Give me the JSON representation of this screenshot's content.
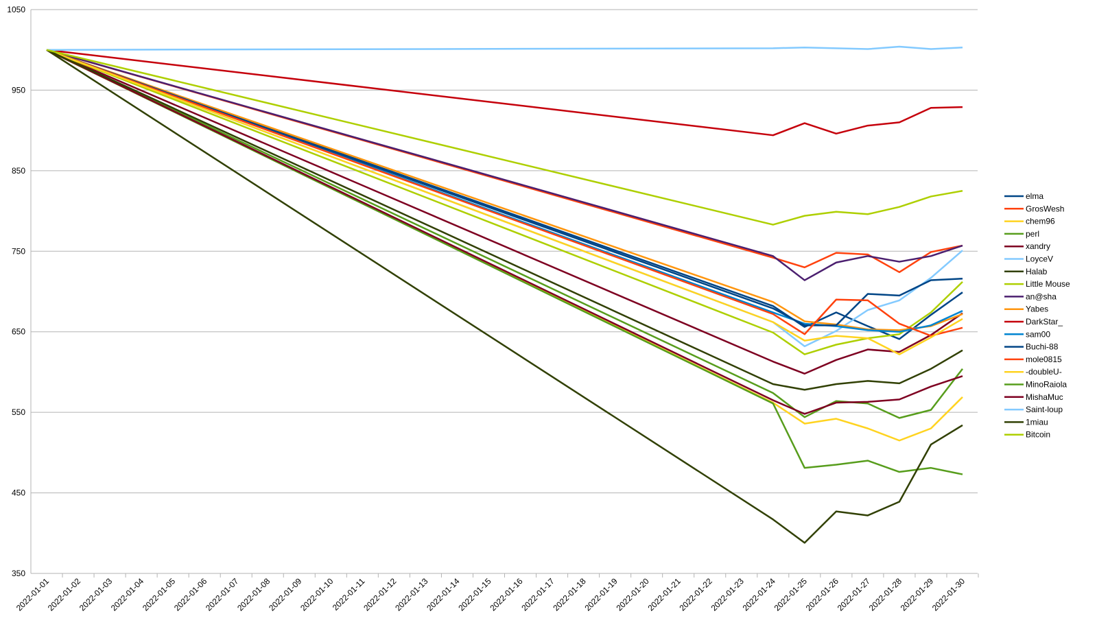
{
  "chart_data": {
    "type": "line",
    "x": [
      "2022-01-01",
      "2022-01-24",
      "2022-01-25",
      "2022-01-26",
      "2022-01-27",
      "2022-01-28",
      "2022-01-29",
      "2022-01-30"
    ],
    "xlim": [
      "2022-01-01",
      "2022-01-30"
    ],
    "xticks": [
      "2022-01-01",
      "2022-01-02",
      "2022-01-03",
      "2022-01-04",
      "2022-01-05",
      "2022-01-06",
      "2022-01-07",
      "2022-01-08",
      "2022-01-09",
      "2022-01-10",
      "2022-01-11",
      "2022-01-12",
      "2022-01-13",
      "2022-01-14",
      "2022-01-15",
      "2022-01-16",
      "2022-01-17",
      "2022-01-18",
      "2022-01-19",
      "2022-01-20",
      "2022-01-21",
      "2022-01-22",
      "2022-01-23",
      "2022-01-24",
      "2022-01-25",
      "2022-01-26",
      "2022-01-27",
      "2022-01-28",
      "2022-01-29",
      "2022-01-30"
    ],
    "ylim": [
      350,
      1050
    ],
    "yticks": [
      350,
      450,
      550,
      650,
      750,
      850,
      950,
      1050
    ],
    "grid": true,
    "legend": "right",
    "series": [
      {
        "name": "elma",
        "color": "#004586",
        "values": [
          1000,
          682,
          656,
          674,
          657,
          641,
          671,
          699
        ]
      },
      {
        "name": "GrosWesh",
        "color": "#ff420e",
        "values": [
          1000,
          742,
          730,
          748,
          746,
          724,
          749,
          757
        ]
      },
      {
        "name": "chem96",
        "color": "#ffd320",
        "values": [
          1000,
          562,
          536,
          542,
          530,
          515,
          530,
          569
        ]
      },
      {
        "name": "perl",
        "color": "#579d1c",
        "values": [
          1000,
          561,
          481,
          485,
          490,
          476,
          481,
          473
        ]
      },
      {
        "name": "xandry",
        "color": "#7e0021",
        "values": [
          1000,
          613,
          598,
          615,
          628,
          625,
          646,
          673
        ]
      },
      {
        "name": "LoyceV",
        "color": "#83caff",
        "values": [
          1000,
          662,
          632,
          651,
          677,
          689,
          717,
          751
        ]
      },
      {
        "name": "Halab",
        "color": "#314004",
        "values": [
          1000,
          417,
          388,
          427,
          422,
          439,
          510,
          534
        ]
      },
      {
        "name": "Little Mouse",
        "color": "#aecf00",
        "values": [
          1000,
          649,
          622,
          634,
          642,
          647,
          674,
          712
        ]
      },
      {
        "name": "an@sha",
        "color": "#4b1f6f",
        "values": [
          1000,
          744,
          714,
          736,
          744,
          737,
          744,
          757
        ]
      },
      {
        "name": "Yabes",
        "color": "#ff950e",
        "values": [
          1000,
          687,
          663,
          659,
          653,
          652,
          657,
          672
        ]
      },
      {
        "name": "DarkStar_",
        "color": "#c5000b",
        "values": [
          1000,
          894,
          909,
          896,
          906,
          910,
          928,
          929
        ]
      },
      {
        "name": "sam00",
        "color": "#0084d1",
        "values": [
          1000,
          674,
          660,
          657,
          652,
          650,
          658,
          676
        ]
      },
      {
        "name": "Buchi-88",
        "color": "#004586",
        "values": [
          1000,
          679,
          658,
          658,
          697,
          695,
          714,
          716
        ]
      },
      {
        "name": "mole0815",
        "color": "#ff420e",
        "values": [
          1000,
          672,
          647,
          690,
          689,
          660,
          645,
          655
        ]
      },
      {
        "name": "-doubleU-",
        "color": "#ffd320",
        "values": [
          1000,
          662,
          639,
          645,
          642,
          622,
          643,
          666
        ]
      },
      {
        "name": "MinoRaiola",
        "color": "#579d1c",
        "values": [
          1000,
          574,
          544,
          564,
          561,
          543,
          553,
          604
        ]
      },
      {
        "name": "MishaMuc",
        "color": "#7e0021",
        "values": [
          1000,
          565,
          548,
          562,
          563,
          566,
          582,
          595
        ]
      },
      {
        "name": "Saint-loup",
        "color": "#83caff",
        "values": [
          1000,
          1002,
          1003,
          1002,
          1001,
          1004,
          1001,
          1003
        ]
      },
      {
        "name": "1miau",
        "color": "#314004",
        "values": [
          1000,
          585,
          578,
          585,
          589,
          586,
          604,
          627
        ]
      },
      {
        "name": "Bitcoin",
        "color": "#aecf00",
        "values": [
          1000,
          783,
          794,
          799,
          796,
          805,
          818,
          825
        ]
      }
    ]
  }
}
